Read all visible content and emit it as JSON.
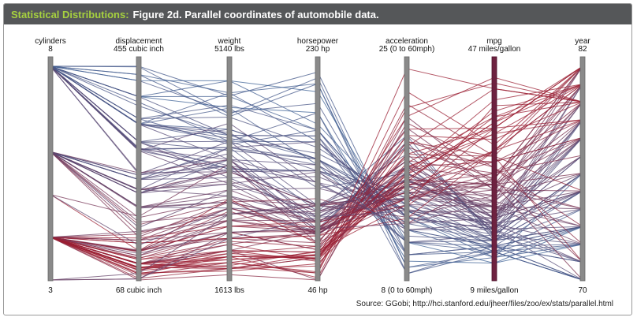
{
  "header": {
    "series_label": "Statistical Distributions:",
    "figure_title": "Figure 2d. Parallel coordinates of automobile data."
  },
  "source": "Source: GGobi; http://hci.stanford.edu/jheer/files/zoo/ex/stats/parallel.html",
  "colors": {
    "low_mpg": "#2f6aa3",
    "high_mpg": "#9b1f33",
    "axis": "#8a8a8a",
    "mpg_axis": "#6e2240"
  },
  "chart_data": {
    "type": "parallel-coordinates",
    "axes": [
      {
        "key": "cylinders",
        "label": "cylinders",
        "max_label": "8",
        "min_label": "3",
        "min": 3,
        "max": 8
      },
      {
        "key": "displacement",
        "label": "displacement",
        "max_label": "455 cubic inch",
        "min_label": "68 cubic inch",
        "min": 68,
        "max": 455
      },
      {
        "key": "weight",
        "label": "weight",
        "max_label": "5140 lbs",
        "min_label": "1613 lbs",
        "min": 1613,
        "max": 5140
      },
      {
        "key": "horsepower",
        "label": "horsepower",
        "max_label": "230 hp",
        "min_label": "46 hp",
        "min": 46,
        "max": 230
      },
      {
        "key": "acceleration",
        "label": "acceleration",
        "max_label": "25 (0 to 60mph)",
        "min_label": "8 (0 to 60mph)",
        "min": 8,
        "max": 25
      },
      {
        "key": "mpg",
        "label": "mpg",
        "max_label": "47 miles/gallon",
        "min_label": "9 miles/gallon",
        "min": 9,
        "max": 47
      },
      {
        "key": "year",
        "label": "year",
        "max_label": "82",
        "min_label": "70",
        "min": 70,
        "max": 82
      }
    ],
    "color_by": "mpg",
    "records": [
      [
        8,
        455,
        4650,
        225,
        10.0,
        14,
        70
      ],
      [
        8,
        440,
        4310,
        215,
        8.5,
        14,
        70
      ],
      [
        8,
        429,
        4380,
        198,
        10.0,
        15,
        71
      ],
      [
        8,
        400,
        4460,
        190,
        9.5,
        12,
        73
      ],
      [
        8,
        400,
        4640,
        175,
        12.0,
        13,
        73
      ],
      [
        8,
        350,
        3900,
        165,
        12.0,
        15,
        71
      ],
      [
        8,
        350,
        4100,
        150,
        13.5,
        14,
        72
      ],
      [
        8,
        318,
        3750,
        150,
        11.0,
        16,
        74
      ],
      [
        8,
        318,
        3440,
        140,
        13.5,
        15,
        73
      ],
      [
        8,
        305,
        3800,
        145,
        13.0,
        17,
        76
      ],
      [
        8,
        302,
        3450,
        140,
        11.0,
        17,
        71
      ],
      [
        8,
        360,
        4300,
        160,
        14.0,
        16,
        75
      ],
      [
        8,
        351,
        4000,
        150,
        14.0,
        15,
        75
      ],
      [
        8,
        400,
        4900,
        180,
        13.0,
        13,
        76
      ],
      [
        8,
        350,
        3600,
        145,
        13.0,
        18,
        77
      ],
      [
        8,
        305,
        3600,
        130,
        14.0,
        19,
        78
      ],
      [
        8,
        262,
        3400,
        110,
        16.0,
        20,
        79
      ],
      [
        8,
        307,
        3500,
        130,
        12.0,
        18,
        70
      ],
      [
        8,
        454,
        4350,
        220,
        9.0,
        14,
        70
      ],
      [
        8,
        383,
        4000,
        170,
        10.0,
        15,
        70
      ],
      [
        8,
        429,
        4900,
        208,
        11.0,
        12,
        72
      ],
      [
        8,
        318,
        4100,
        150,
        13.5,
        16,
        76
      ],
      [
        8,
        260,
        3900,
        110,
        17.0,
        18,
        77
      ],
      [
        8,
        360,
        3850,
        175,
        11.0,
        15,
        73
      ],
      [
        8,
        400,
        4000,
        170,
        11.5,
        16,
        75
      ],
      [
        8,
        350,
        4700,
        165,
        13.0,
        14,
        74
      ],
      [
        8,
        318,
        3900,
        140,
        15.0,
        17,
        78
      ],
      [
        8,
        302,
        3200,
        139,
        12.5,
        20,
        80
      ],
      [
        8,
        350,
        3950,
        155,
        14.5,
        16,
        79
      ],
      [
        8,
        305,
        3400,
        140,
        14.5,
        18,
        79
      ],
      [
        8,
        318,
        3300,
        135,
        13.5,
        19,
        81
      ],
      [
        8,
        350,
        4050,
        125,
        16.5,
        17,
        76
      ],
      [
        8,
        360,
        4500,
        175,
        12.0,
        15,
        72
      ],
      [
        8,
        304,
        3800,
        150,
        12.5,
        16,
        73
      ],
      [
        8,
        440,
        4700,
        215,
        9.0,
        13,
        72
      ],
      [
        8,
        390,
        3900,
        190,
        8.5,
        15,
        70
      ],
      [
        6,
        250,
        3300,
        100,
        15.5,
        18,
        71
      ],
      [
        6,
        225,
        3200,
        105,
        16.0,
        19,
        74
      ],
      [
        6,
        232,
        3000,
        100,
        16.5,
        20,
        75
      ],
      [
        6,
        258,
        3500,
        110,
        15.0,
        18,
        73
      ],
      [
        6,
        200,
        2900,
        85,
        16.0,
        21,
        76
      ],
      [
        6,
        231,
        3250,
        105,
        15.5,
        22,
        78
      ],
      [
        6,
        225,
        3400,
        110,
        18.0,
        20,
        77
      ],
      [
        6,
        250,
        3600,
        100,
        17.0,
        19,
        79
      ],
      [
        6,
        173,
        2700,
        110,
        13.0,
        24,
        80
      ],
      [
        6,
        181,
        2950,
        110,
        14.5,
        25,
        82
      ],
      [
        6,
        250,
        3500,
        88,
        19.0,
        17,
        76
      ],
      [
        6,
        200,
        3100,
        95,
        15.5,
        23,
        79
      ],
      [
        6,
        232,
        3200,
        90,
        16.5,
        21,
        80
      ],
      [
        6,
        258,
        3700,
        95,
        17.5,
        18,
        75
      ],
      [
        6,
        146,
        2900,
        97,
        14.5,
        26,
        81
      ],
      [
        6,
        168,
        2900,
        116,
        12.5,
        27,
        81
      ],
      [
        6,
        225,
        3600,
        90,
        18.7,
        17,
        72
      ],
      [
        6,
        155,
        2600,
        110,
        14.9,
        26,
        79
      ],
      [
        6,
        163,
        3100,
        125,
        13.6,
        20,
        81
      ],
      [
        6,
        200,
        2800,
        88,
        15.5,
        19,
        71
      ],
      [
        6,
        250,
        3800,
        105,
        19.5,
        16,
        73
      ],
      [
        6,
        198,
        2900,
        95,
        15.0,
        22,
        74
      ],
      [
        6,
        262,
        3600,
        85,
        17.0,
        23,
        82
      ],
      [
        6,
        231,
        3400,
        110,
        15.8,
        24,
        81
      ],
      [
        6,
        200,
        3000,
        85,
        16.5,
        22,
        72
      ],
      [
        6,
        225,
        3450,
        95,
        17.5,
        20,
        75
      ],
      [
        4,
        121,
        2700,
        112,
        14.5,
        22,
        73
      ],
      [
        4,
        140,
        2400,
        72,
        19.5,
        25,
        75
      ],
      [
        4,
        97,
        2100,
        88,
        14.5,
        27,
        71
      ],
      [
        4,
        98,
        1800,
        65,
        19.0,
        29,
        72
      ],
      [
        4,
        120,
        2500,
        88,
        15.5,
        28,
        77
      ],
      [
        4,
        85,
        1900,
        70,
        17.0,
        35,
        79
      ],
      [
        4,
        91,
        1800,
        68,
        16.0,
        37,
        81
      ],
      [
        4,
        98,
        2000,
        65,
        18.0,
        36,
        82
      ],
      [
        4,
        105,
        2200,
        63,
        19.5,
        34,
        80
      ],
      [
        4,
        112,
        2400,
        88,
        18.6,
        27,
        82
      ],
      [
        4,
        151,
        2800,
        90,
        17.5,
        28,
        80
      ],
      [
        4,
        135,
        2300,
        84,
        14.5,
        36,
        82
      ],
      [
        4,
        86,
        2000,
        65,
        16.4,
        39,
        81
      ],
      [
        4,
        79,
        1800,
        58,
        18.6,
        43,
        80
      ],
      [
        4,
        89,
        2100,
        62,
        17.3,
        38,
        81
      ],
      [
        4,
        97,
        2200,
        88,
        16.0,
        26,
        74
      ],
      [
        4,
        107,
        2400,
        72,
        17.0,
        30,
        78
      ],
      [
        4,
        140,
        2800,
        86,
        15.6,
        26,
        78
      ],
      [
        4,
        120,
        2600,
        97,
        15.0,
        24,
        76
      ],
      [
        4,
        71,
        1800,
        65,
        19.0,
        31,
        71
      ],
      [
        4,
        68,
        1700,
        46,
        20.5,
        29,
        73
      ],
      [
        4,
        76,
        1900,
        52,
        22.0,
        31,
        75
      ],
      [
        4,
        90,
        2000,
        48,
        21.7,
        44,
        80
      ],
      [
        4,
        97,
        2100,
        46,
        21.0,
        26,
        70
      ],
      [
        4,
        91,
        1900,
        53,
        24.8,
        43,
        80
      ],
      [
        4,
        97,
        2300,
        78,
        14.5,
        28,
        78
      ],
      [
        4,
        116,
        2400,
        90,
        14.0,
        22,
        75
      ],
      [
        4,
        122,
        2300,
        86,
        16.0,
        26,
        76
      ],
      [
        4,
        98,
        2100,
        70,
        15.5,
        30,
        79
      ],
      [
        4,
        144,
        2500,
        96,
        13.9,
        32,
        82
      ],
      [
        4,
        105,
        2100,
        70,
        16.9,
        36,
        82
      ],
      [
        4,
        112,
        2600,
        85,
        16.0,
        25,
        74
      ],
      [
        4,
        119,
        2500,
        92,
        15.0,
        32,
        81
      ],
      [
        4,
        156,
        2700,
        105,
        14.5,
        23,
        78
      ],
      [
        4,
        91,
        1950,
        67,
        15.8,
        38,
        80
      ],
      [
        4,
        81,
        1760,
        60,
        16.4,
        35,
        81
      ],
      [
        4,
        86,
        2050,
        64,
        16.0,
        37,
        82
      ],
      [
        4,
        97,
        2050,
        75,
        15.5,
        32,
        79
      ],
      [
        4,
        108,
        2250,
        75,
        18.0,
        31,
        82
      ],
      [
        4,
        140,
        2600,
        88,
        17.0,
        27,
        82
      ],
      [
        4,
        135,
        2300,
        84,
        12.9,
        32,
        81
      ],
      [
        4,
        120,
        2750,
        79,
        17.8,
        30,
        78
      ],
      [
        4,
        89,
        1850,
        71,
        14.0,
        40,
        80
      ],
      [
        4,
        98,
        1950,
        68,
        16.5,
        41,
        81
      ],
      [
        4,
        79,
        2000,
        67,
        21.0,
        45,
        80
      ],
      [
        4,
        97,
        1830,
        52,
        23.0,
        33,
        82
      ],
      [
        3,
        70,
        2300,
        100,
        13.5,
        19,
        72
      ],
      [
        3,
        80,
        2700,
        110,
        13.5,
        21,
        77
      ],
      [
        3,
        70,
        2400,
        90,
        12.5,
        23,
        73
      ],
      [
        5,
        121,
        2950,
        77,
        20.0,
        36,
        79
      ],
      [
        5,
        131,
        2800,
        103,
        15.9,
        20,
        78
      ],
      [
        5,
        183,
        3530,
        77,
        20.1,
        25,
        80
      ],
      [
        6,
        231,
        3800,
        165,
        13.0,
        18,
        78
      ],
      [
        8,
        302,
        4200,
        129,
        12.0,
        19,
        75
      ],
      [
        8,
        350,
        4450,
        145,
        11.0,
        14,
        73
      ]
    ]
  }
}
